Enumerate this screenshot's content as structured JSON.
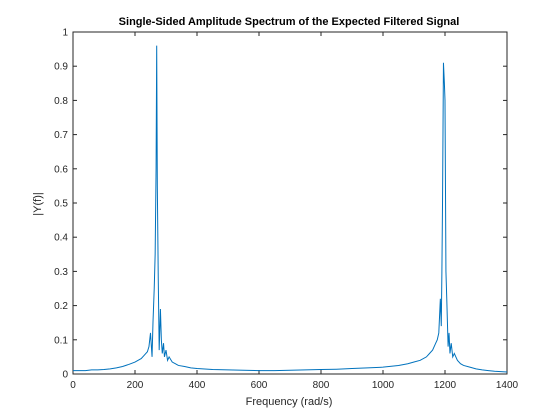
{
  "chart_data": {
    "type": "line",
    "title": "Single-Sided Amplitude Spectrum of the Expected Filtered Signal",
    "xlabel": "Frequency (rad/s)",
    "ylabel": "|Y(f)|",
    "xlim": [
      0,
      1400
    ],
    "ylim": [
      0,
      1
    ],
    "xticks": [
      "0",
      "200",
      "400",
      "600",
      "800",
      "1000",
      "1200",
      "1400"
    ],
    "yticks": [
      "0",
      "0.1",
      "0.2",
      "0.3",
      "0.4",
      "0.5",
      "0.6",
      "0.7",
      "0.8",
      "0.9",
      "1"
    ],
    "grid": false,
    "line_color": "#0072BD",
    "series": [
      {
        "x": [
          0,
          20,
          40,
          60,
          80,
          100,
          120,
          140,
          160,
          180,
          200,
          210,
          220,
          230,
          240,
          245,
          250,
          255,
          258,
          262,
          265,
          268,
          270,
          272,
          275,
          278,
          282,
          285,
          288,
          292,
          295,
          300,
          305,
          310,
          320,
          330,
          340,
          360,
          380,
          400,
          450,
          500,
          550,
          600,
          650,
          700,
          750,
          800,
          850,
          900,
          950,
          1000,
          1050,
          1080,
          1100,
          1120,
          1140,
          1150,
          1160,
          1170,
          1175,
          1180,
          1185,
          1188,
          1190,
          1192,
          1195,
          1198,
          1200,
          1203,
          1206,
          1210,
          1213,
          1216,
          1220,
          1225,
          1230,
          1240,
          1250,
          1260,
          1280,
          1300,
          1320,
          1340,
          1360,
          1380,
          1400
        ],
        "y": [
          0.01,
          0.01,
          0.01,
          0.012,
          0.012,
          0.013,
          0.015,
          0.018,
          0.022,
          0.028,
          0.035,
          0.04,
          0.045,
          0.055,
          0.065,
          0.08,
          0.12,
          0.05,
          0.15,
          0.25,
          0.35,
          0.6,
          0.96,
          0.55,
          0.28,
          0.07,
          0.19,
          0.1,
          0.06,
          0.09,
          0.05,
          0.07,
          0.04,
          0.05,
          0.035,
          0.03,
          0.025,
          0.022,
          0.018,
          0.016,
          0.013,
          0.012,
          0.011,
          0.01,
          0.01,
          0.011,
          0.012,
          0.013,
          0.014,
          0.016,
          0.018,
          0.02,
          0.025,
          0.03,
          0.035,
          0.04,
          0.05,
          0.06,
          0.07,
          0.09,
          0.1,
          0.12,
          0.22,
          0.14,
          0.3,
          0.5,
          0.91,
          0.85,
          0.8,
          0.3,
          0.21,
          0.08,
          0.12,
          0.06,
          0.09,
          0.05,
          0.06,
          0.04,
          0.03,
          0.025,
          0.02,
          0.015,
          0.012,
          0.01,
          0.008,
          0.007,
          0.006
        ]
      }
    ]
  }
}
